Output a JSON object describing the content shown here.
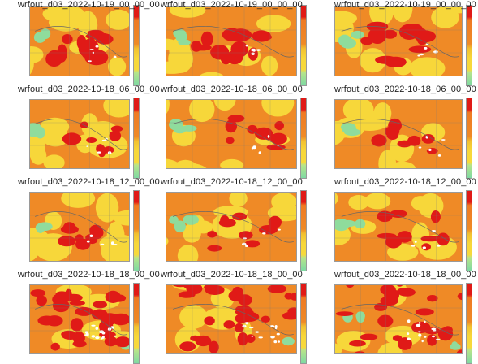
{
  "panels": [
    {
      "caption": "wrfout_d03_2022-10-18_06_00_00"
    },
    {
      "caption": "wrfout_d03_2022-10-18_06_00_00"
    },
    {
      "caption": "wrfout_d03_2022-10-18_06_00_00"
    },
    {
      "caption": "wrfout_d03_2022-10-18_12_00_00"
    },
    {
      "caption": "wrfout_d03_2022-10-18_12_00_00"
    },
    {
      "caption": "wrfout_d03_2022-10-18_12_00_00"
    },
    {
      "caption": "wrfout_d03_2022-10-18_18_00_00"
    },
    {
      "caption": "wrfout_d03_2022-10-18_18_00_00"
    },
    {
      "caption": "wrfout_d03_2022-10-18_18_00_00"
    },
    {
      "caption": "wrfout_d03_2022-10-19_00_00_00"
    },
    {
      "caption": "wrfout_d03_2022-10-19_00_00_00"
    },
    {
      "caption": "wrfout_d03_2022-10-19_00_00_00"
    }
  ],
  "colors": {
    "red": "#e01a17",
    "orange": "#ef8a26",
    "yellow": "#f7d73a",
    "green": "#8fdc9c"
  }
}
